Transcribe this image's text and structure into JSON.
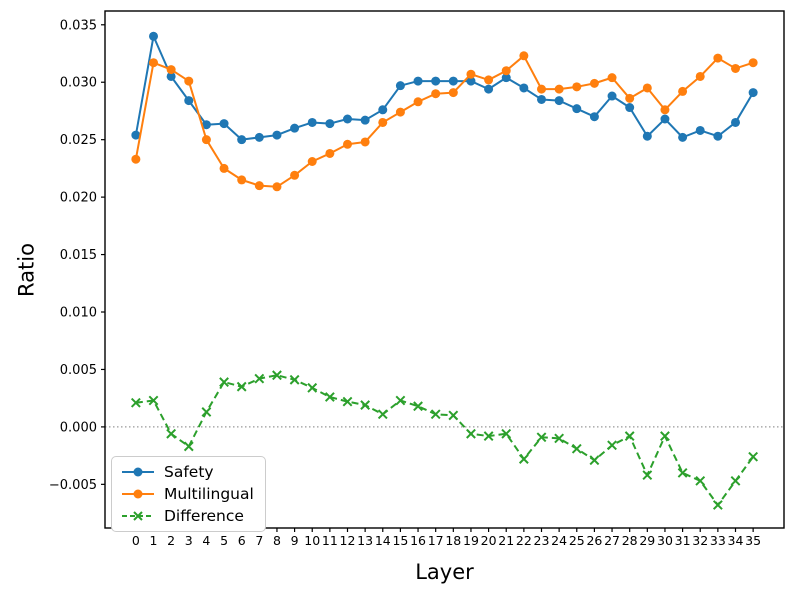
{
  "figure": {
    "background": "#ffffff",
    "xlabel": "Layer",
    "ylabel": "Ratio"
  },
  "legend": {
    "position": "lower left",
    "items": [
      {
        "label": "Safety",
        "color": "#1f77b4",
        "marker": "circle",
        "line": "solid"
      },
      {
        "label": "Multilingual",
        "color": "#ff7f0e",
        "marker": "circle",
        "line": "solid"
      },
      {
        "label": "Difference",
        "color": "#2ca02c",
        "marker": "x",
        "line": "dashed"
      }
    ]
  },
  "chart_data": {
    "type": "line",
    "title": "",
    "xlabel": "Layer",
    "ylabel": "Ratio",
    "x": [
      0,
      1,
      2,
      3,
      4,
      5,
      6,
      7,
      8,
      9,
      10,
      11,
      12,
      13,
      14,
      15,
      16,
      17,
      18,
      19,
      20,
      21,
      22,
      23,
      24,
      25,
      26,
      27,
      28,
      29,
      30,
      31,
      32,
      33,
      34,
      35
    ],
    "series": [
      {
        "name": "Safety",
        "color": "#1f77b4",
        "marker": "o",
        "linestyle": "solid",
        "values": [
          0.0254,
          0.034,
          0.0305,
          0.0284,
          0.0263,
          0.0264,
          0.025,
          0.0252,
          0.0254,
          0.026,
          0.0265,
          0.0264,
          0.0268,
          0.0267,
          0.0276,
          0.0297,
          0.0301,
          0.0301,
          0.0301,
          0.0301,
          0.0294,
          0.0304,
          0.0295,
          0.0285,
          0.0284,
          0.0277,
          0.027,
          0.0288,
          0.0278,
          0.0253,
          0.0268,
          0.0252,
          0.0258,
          0.0253,
          0.0265,
          0.0291
        ]
      },
      {
        "name": "Multilingual",
        "color": "#ff7f0e",
        "marker": "o",
        "linestyle": "solid",
        "values": [
          0.0233,
          0.0317,
          0.0311,
          0.0301,
          0.025,
          0.0225,
          0.0215,
          0.021,
          0.0209,
          0.0219,
          0.0231,
          0.0238,
          0.0246,
          0.0248,
          0.0265,
          0.0274,
          0.0283,
          0.029,
          0.0291,
          0.0307,
          0.0302,
          0.031,
          0.0323,
          0.0294,
          0.0294,
          0.0296,
          0.0299,
          0.0304,
          0.0286,
          0.0295,
          0.0276,
          0.0292,
          0.0305,
          0.0321,
          0.0312,
          0.0317
        ]
      },
      {
        "name": "Difference",
        "color": "#2ca02c",
        "marker": "x",
        "linestyle": "dashed",
        "values": [
          0.0021,
          0.0023,
          -0.0006,
          -0.0017,
          0.0013,
          0.0039,
          0.0035,
          0.0042,
          0.0045,
          0.0041,
          0.0034,
          0.0026,
          0.0022,
          0.0019,
          0.0011,
          0.0023,
          0.0018,
          0.0011,
          0.001,
          -0.0006,
          -0.0008,
          -0.0006,
          -0.0028,
          -0.0009,
          -0.001,
          -0.0019,
          -0.0029,
          -0.0016,
          -0.0008,
          -0.0042,
          -0.0008,
          -0.004,
          -0.0047,
          -0.0068,
          -0.0047,
          -0.0026
        ]
      }
    ],
    "xlim": [
      -1.75,
      36.75
    ],
    "ylim": [
      -0.0088,
      0.0362
    ],
    "xticks": {
      "values": [
        0,
        1,
        2,
        3,
        4,
        5,
        6,
        7,
        8,
        9,
        10,
        11,
        12,
        13,
        14,
        15,
        16,
        17,
        18,
        19,
        20,
        21,
        22,
        23,
        24,
        25,
        26,
        27,
        28,
        29,
        30,
        31,
        32,
        33,
        34,
        35
      ],
      "labels": [
        "0",
        "1",
        "2",
        "3",
        "4",
        "5",
        "6",
        "7",
        "8",
        "9",
        "10",
        "11",
        "12",
        "13",
        "14",
        "15",
        "16",
        "17",
        "18",
        "19",
        "20",
        "21",
        "22",
        "23",
        "24",
        "25",
        "26",
        "27",
        "28",
        "29",
        "30",
        "31",
        "32",
        "33",
        "34",
        "35"
      ]
    },
    "yticks": {
      "values": [
        0.035,
        0.03,
        0.025,
        0.02,
        0.015,
        0.01,
        0.005,
        0.0,
        -0.005
      ],
      "labels": [
        "0.035",
        "0.030",
        "0.025",
        "0.020",
        "0.015",
        "0.010",
        "0.005",
        "0.000",
        "−0.005"
      ]
    },
    "zero_line": true,
    "zero_line_color": "#999999",
    "grid": false,
    "legend_position": "lower left"
  }
}
